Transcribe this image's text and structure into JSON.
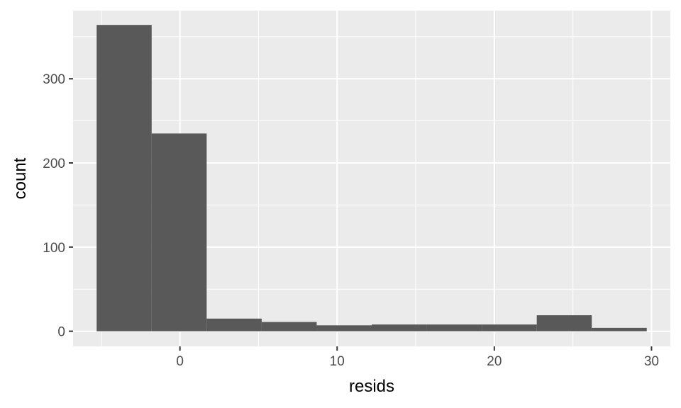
{
  "chart_data": {
    "type": "bar",
    "subtype": "histogram",
    "xlabel": "resids",
    "ylabel": "count",
    "xlim": [
      -6.8,
      31.2
    ],
    "ylim": [
      -18,
      381
    ],
    "x_ticks": [
      0,
      10,
      20,
      30
    ],
    "x_tick_labels": [
      "0",
      "10",
      "20",
      "30"
    ],
    "y_ticks": [
      0,
      100,
      200,
      300
    ],
    "y_tick_labels": [
      "0",
      "100",
      "200",
      "300"
    ],
    "bins": [
      {
        "x0": -5.3,
        "x1": -1.8,
        "count": 364
      },
      {
        "x0": -1.8,
        "x1": 1.7,
        "count": 235
      },
      {
        "x0": 1.7,
        "x1": 5.2,
        "count": 15
      },
      {
        "x0": 5.2,
        "x1": 8.7,
        "count": 11
      },
      {
        "x0": 8.7,
        "x1": 12.2,
        "count": 7
      },
      {
        "x0": 12.2,
        "x1": 15.7,
        "count": 8
      },
      {
        "x0": 15.7,
        "x1": 19.2,
        "count": 8
      },
      {
        "x0": 19.2,
        "x1": 22.7,
        "count": 8
      },
      {
        "x0": 22.7,
        "x1": 26.2,
        "count": 19
      },
      {
        "x0": 26.2,
        "x1": 29.7,
        "count": 4
      }
    ],
    "grid": true,
    "colors": {
      "panel_background": "#ebebeb",
      "grid_line": "#ffffff",
      "bar_fill": "#595959",
      "tick_mark": "#333333"
    }
  }
}
